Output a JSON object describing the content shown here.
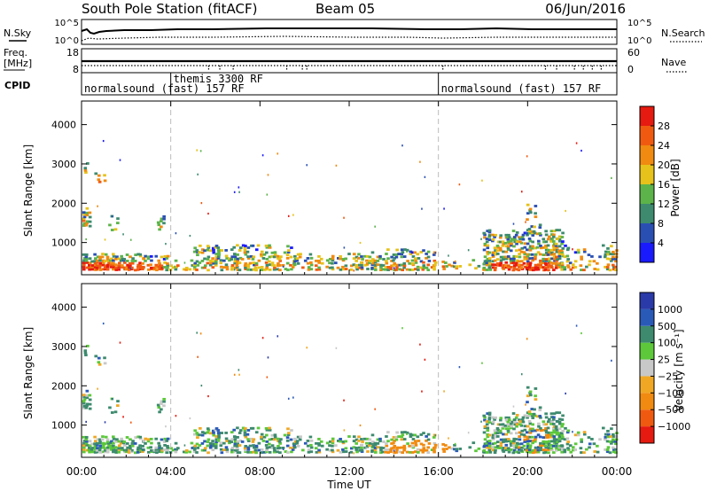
{
  "header": {
    "station": "South Pole Station (fitACF)",
    "beam": "Beam 05",
    "date": "06/Jun/2016"
  },
  "top_panels": {
    "nsky_label": "N.Sky",
    "nsearch_label": "N.Search",
    "nsky_ticks": [
      "10^5",
      "10^0"
    ],
    "nsearch_ticks": [
      "10^5",
      "10^0"
    ],
    "freq_label_1": "Freq.",
    "freq_label_2": "[MHz]",
    "freq_ticks": [
      "18",
      "8"
    ],
    "nave_label": "Nave",
    "nave_ticks": [
      "60",
      "0"
    ],
    "cpid_label": "CPID"
  },
  "cpid_segments": [
    {
      "start_hr": 0,
      "end_hr": 4,
      "label": "normalsound (fast) 157 RF",
      "row": "low"
    },
    {
      "start_hr": 4,
      "end_hr": 16,
      "label": "themis 3300 RF",
      "row": "high"
    },
    {
      "start_hr": 16,
      "end_hr": 24,
      "label": "normalsound (fast) 157 RF",
      "row": "low"
    }
  ],
  "colors": {
    "power_scale": [
      "#1a1aff",
      "#2a4fb3",
      "#3d8a6e",
      "#5cb34a",
      "#e6c21a",
      "#f08a10",
      "#f05a10",
      "#e61a10"
    ],
    "velocity_scale": [
      "#e61a10",
      "#f05a10",
      "#f08a10",
      "#f0a824",
      "#c8c8c8",
      "#5cc83a",
      "#3d8a6e",
      "#2a5ab8",
      "#2a3aa8"
    ],
    "dashed_line": "#bbbbbb"
  },
  "chart_data": [
    {
      "type": "heatmap",
      "title": "",
      "xlabel": "",
      "ylabel": "Slant Range [km]",
      "xlim_hr": [
        0,
        24
      ],
      "ylim": [
        180,
        4600
      ],
      "yticks": [
        "4000",
        "3000",
        "2000",
        "1000"
      ],
      "ytick_values": [
        4000,
        3000,
        2000,
        1000
      ],
      "colorbar_label": "Power [dB]",
      "colorbar_ticks": [
        "28",
        "24",
        "20",
        "16",
        "12",
        "8",
        "4"
      ],
      "colorbar_tick_values": [
        28,
        24,
        20,
        16,
        12,
        8,
        4
      ],
      "colorbar_range": [
        0,
        32
      ],
      "dashed_hours": [
        4,
        16
      ]
    },
    {
      "type": "heatmap",
      "title": "",
      "xlabel": "Time UT",
      "ylabel": "Slant Range [km]",
      "xlim_hr": [
        0,
        24
      ],
      "ylim": [
        180,
        4600
      ],
      "yticks": [
        "4000",
        "3000",
        "2000",
        "1000"
      ],
      "ytick_values": [
        4000,
        3000,
        2000,
        1000
      ],
      "xticks": [
        "00:00",
        "04:00",
        "08:00",
        "12:00",
        "16:00",
        "20:00",
        "00:00"
      ],
      "xtick_hours": [
        0,
        4,
        8,
        12,
        16,
        20,
        24
      ],
      "colorbar_label": "Velocity [m s⁻¹]",
      "colorbar_ticks": [
        "1000",
        "500",
        "100",
        "25",
        "−25",
        "−100",
        "−500",
        "−1000"
      ],
      "dashed_hours": [
        4,
        16
      ]
    }
  ]
}
